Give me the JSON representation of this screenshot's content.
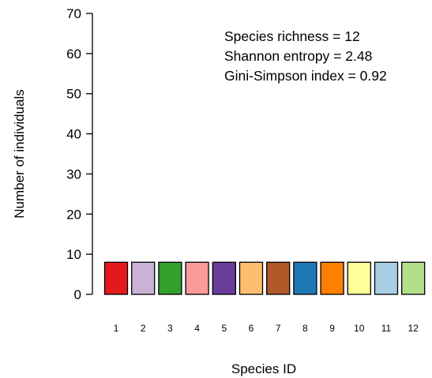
{
  "chart_data": {
    "type": "bar",
    "categories": [
      "1",
      "2",
      "3",
      "4",
      "5",
      "6",
      "7",
      "8",
      "9",
      "10",
      "11",
      "12"
    ],
    "values": [
      8,
      8,
      8,
      8,
      8,
      8,
      8,
      8,
      8,
      8,
      8,
      8
    ],
    "colors": [
      "#e31a1c",
      "#cab2d6",
      "#33a02c",
      "#fb9a99",
      "#6a3d9a",
      "#fdbf6f",
      "#b15928",
      "#1f78b4",
      "#ff7f00",
      "#ffff99",
      "#a6cee3",
      "#b2df8a"
    ],
    "xlabel": "Species ID",
    "ylabel": "Number of individuals",
    "ylim": [
      0,
      70
    ],
    "yticks": [
      0,
      10,
      20,
      30,
      40,
      50,
      60,
      70
    ],
    "annotations": [
      "Species richness = 12",
      "Shannon entropy = 2.48",
      "Gini-Simpson index = 0.92"
    ],
    "grid": false,
    "legend": "none"
  }
}
